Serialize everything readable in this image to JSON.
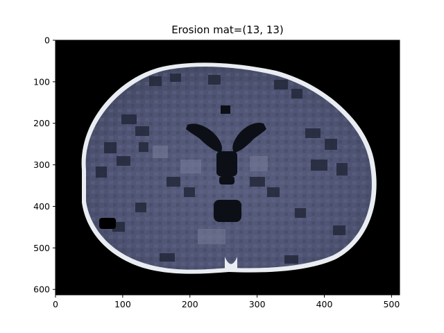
{
  "chart_data": {
    "type": "heatmap",
    "title": "Erosion mat=(13, 13)",
    "xlabel": "",
    "ylabel": "",
    "image_size": [
      512,
      613
    ],
    "xlim": [
      0,
      512
    ],
    "ylim": [
      613,
      0
    ],
    "x_ticks": [
      0,
      100,
      200,
      300,
      400,
      500
    ],
    "y_ticks": [
      0,
      100,
      200,
      300,
      400,
      500,
      600
    ],
    "colormap": "bone",
    "grid": false,
    "legend": "none",
    "image_description": "Axial CT slice of a head after grayscale erosion with a 13x13 structuring element; blocky slate-blue brain tissue inside a bright white skull ring on a black background"
  },
  "colors": {
    "background": "#000000",
    "skull": "#f2f5f7",
    "tissue_base": "#4f5474",
    "tissue_light": "#6d7291",
    "ventricle": "#0c0f16",
    "axes_frame": "#000000"
  }
}
